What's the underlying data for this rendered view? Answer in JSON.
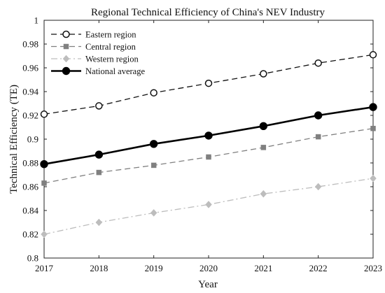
{
  "chart_data": {
    "type": "line",
    "title": "Regional Technical Efficiency of China's NEV Industry",
    "xlabel": "Year",
    "ylabel": "Technical Efficiency (TE)",
    "x": [
      2017,
      2018,
      2019,
      2020,
      2021,
      2022,
      2023
    ],
    "xlim": [
      2017,
      2023
    ],
    "ylim": [
      0.8,
      1.0
    ],
    "yticks": [
      0.8,
      0.82,
      0.84,
      0.86,
      0.88,
      0.9,
      0.92,
      0.94,
      0.96,
      0.98,
      1
    ],
    "ytick_labels": [
      "0.8",
      "0.82",
      "0.84",
      "0.86",
      "0.88",
      "0.9",
      "0.92",
      "0.94",
      "0.96",
      "0.98",
      "1"
    ],
    "grid": false,
    "legend_position": "top-left",
    "series": [
      {
        "name": "Eastern region",
        "values": [
          0.921,
          0.928,
          0.939,
          0.947,
          0.955,
          0.964,
          0.971
        ],
        "color": "#111111",
        "line_style": "dashed",
        "marker": "open-circle",
        "emphasis": "normal"
      },
      {
        "name": "Central region",
        "values": [
          0.863,
          0.872,
          0.878,
          0.885,
          0.893,
          0.902,
          0.909
        ],
        "color": "#808080",
        "line_style": "dashed",
        "marker": "square",
        "emphasis": "normal"
      },
      {
        "name": "Western region",
        "values": [
          0.82,
          0.83,
          0.838,
          0.845,
          0.854,
          0.86,
          0.867
        ],
        "color": "#bdbdbd",
        "line_style": "dash-dot",
        "marker": "diamond",
        "emphasis": "normal"
      },
      {
        "name": "National average",
        "values": [
          0.879,
          0.887,
          0.896,
          0.903,
          0.911,
          0.92,
          0.927
        ],
        "color": "#000000",
        "line_style": "solid",
        "marker": "filled-circle",
        "emphasis": "bold"
      }
    ]
  }
}
